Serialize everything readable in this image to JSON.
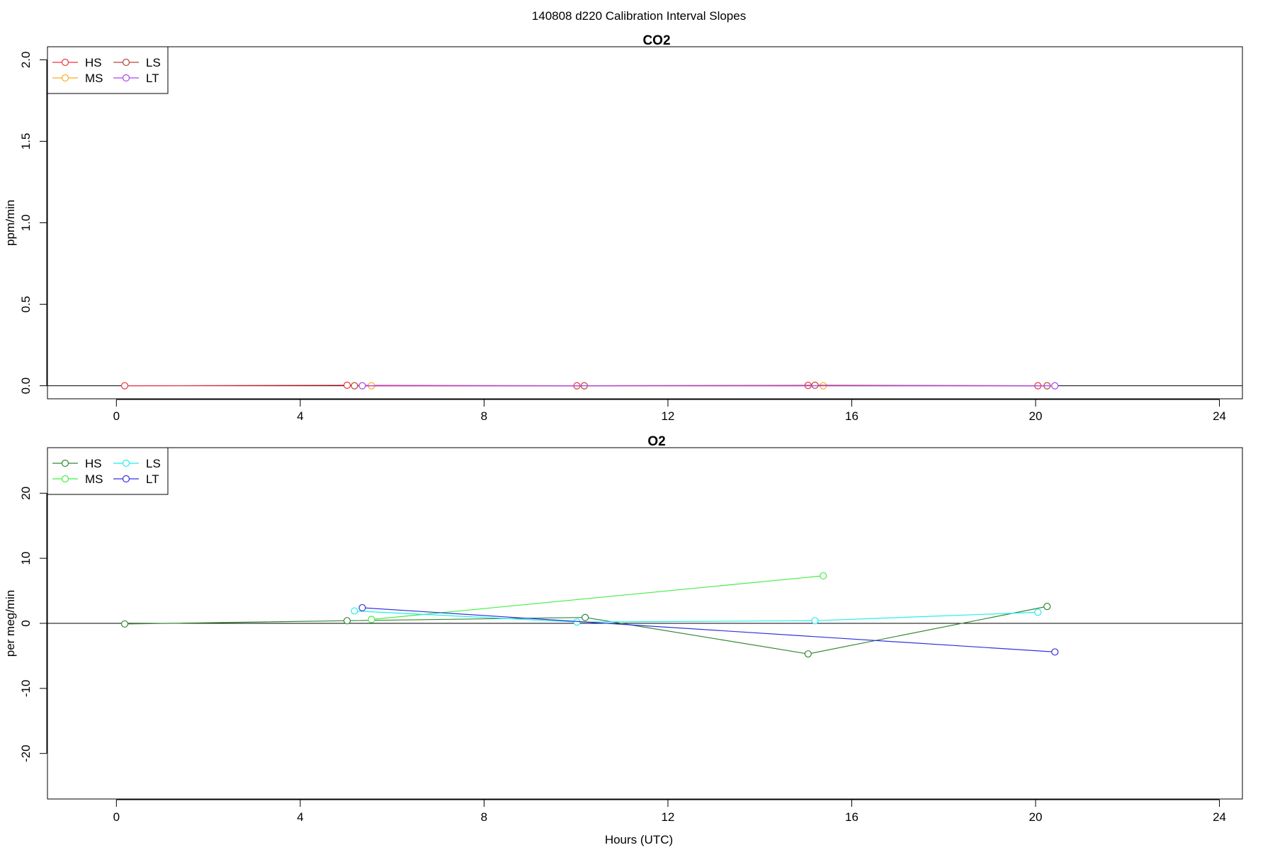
{
  "figure": {
    "title": "140808   d220   Calibration Interval Slopes",
    "x_axis_label": "Hours (UTC)"
  },
  "chart_data": [
    {
      "type": "line",
      "title": "CO2",
      "ylabel": "ppm/min",
      "xlabel": "",
      "xlim": [
        -1.5,
        24.5
      ],
      "ylim": [
        -0.08,
        2.08
      ],
      "x_ticks": [
        0,
        4,
        8,
        12,
        16,
        20,
        24
      ],
      "y_ticks": [
        0.0,
        0.5,
        1.0,
        1.5,
        2.0
      ],
      "y_tick_labels": [
        "0.0",
        "0.5",
        "1.0",
        "1.5",
        "2.0"
      ],
      "reference_line": 0,
      "legend_position": "top-left",
      "legend_columns": 2,
      "series": [
        {
          "name": "HS",
          "color": "#ee3344",
          "x": [
            0.18,
            5.02,
            10.02,
            15.05,
            20.05
          ],
          "y": [
            0.0,
            0.003,
            0.0,
            0.002,
            0.0
          ]
        },
        {
          "name": "MS",
          "color": "#ffaa22",
          "x": [
            5.55,
            15.38
          ],
          "y": [
            0.0,
            0.0
          ]
        },
        {
          "name": "LS",
          "color": "#bb4433",
          "x": [
            5.18,
            10.18,
            15.2,
            20.25
          ],
          "y": [
            0.0,
            0.0,
            0.003,
            0.0
          ]
        },
        {
          "name": "LT",
          "color": "#aa44ee",
          "x": [
            5.35,
            20.42
          ],
          "y": [
            0.0,
            0.0
          ]
        }
      ]
    },
    {
      "type": "line",
      "title": "O2",
      "ylabel": "per meg/min",
      "xlabel": "Hours (UTC)",
      "xlim": [
        -1.5,
        24.5
      ],
      "ylim": [
        -27,
        27
      ],
      "x_ticks": [
        0,
        4,
        8,
        12,
        16,
        20,
        24
      ],
      "y_ticks": [
        -20,
        -10,
        0,
        10,
        20
      ],
      "y_tick_labels": [
        "-20",
        "-10",
        "0",
        "10",
        "20"
      ],
      "reference_line": 0,
      "legend_position": "top-left",
      "legend_columns": 2,
      "series": [
        {
          "name": "HS",
          "color": "#338833",
          "x": [
            0.18,
            5.02,
            10.2,
            15.05,
            20.25
          ],
          "y": [
            -0.1,
            0.4,
            0.9,
            -4.7,
            2.6
          ]
        },
        {
          "name": "MS",
          "color": "#44ee44",
          "x": [
            5.55,
            15.38
          ],
          "y": [
            0.6,
            7.3
          ]
        },
        {
          "name": "LS",
          "color": "#22eeee",
          "x": [
            5.18,
            10.02,
            15.2,
            20.05
          ],
          "y": [
            1.9,
            0.2,
            0.4,
            1.7
          ]
        },
        {
          "name": "LT",
          "color": "#3333dd",
          "x": [
            5.35,
            20.42
          ],
          "y": [
            2.4,
            -4.4
          ]
        }
      ]
    }
  ]
}
